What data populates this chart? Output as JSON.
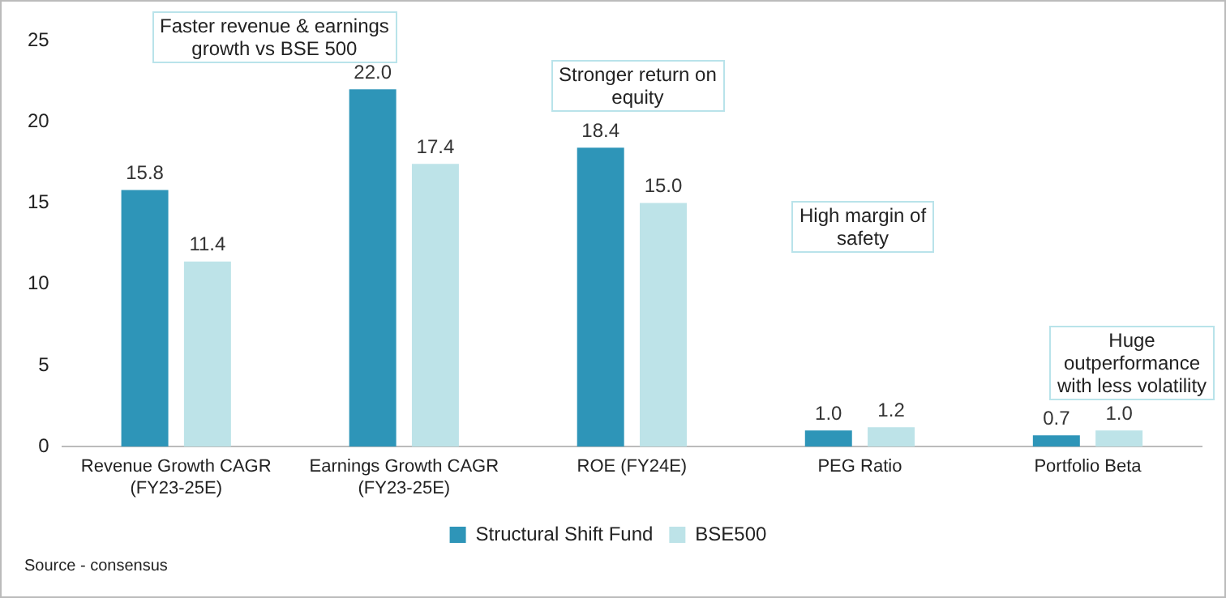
{
  "chart_data": {
    "type": "bar",
    "categories": [
      "Revenue Growth CAGR\n(FY23-25E)",
      "Earnings Growth CAGR\n(FY23-25E)",
      "ROE (FY24E)",
      "PEG Ratio",
      "Portfolio Beta"
    ],
    "series": [
      {
        "name": "Structural Shift Fund",
        "color": "#2e95b8",
        "values": [
          15.8,
          22.0,
          18.4,
          1.0,
          0.7
        ]
      },
      {
        "name": "BSE500",
        "color": "#bde3e8",
        "values": [
          11.4,
          17.4,
          15.0,
          1.2,
          1.0
        ]
      }
    ],
    "value_labels": [
      [
        "15.8",
        "22.0",
        "18.4",
        "1.0",
        "0.7"
      ],
      [
        "11.4",
        "17.4",
        "15.0",
        "1.2",
        "1.0"
      ]
    ],
    "ylim": [
      0,
      25
    ],
    "yticks": [
      0,
      5,
      10,
      15,
      20,
      25
    ],
    "grid": false,
    "legend": "bottom",
    "annotations": [
      "Faster revenue & earnings\ngrowth vs BSE 500",
      "Stronger return on\nequity",
      "High margin of\nsafety",
      "Huge\noutperformance\nwith less volatility",
      "Source - consensus"
    ]
  }
}
